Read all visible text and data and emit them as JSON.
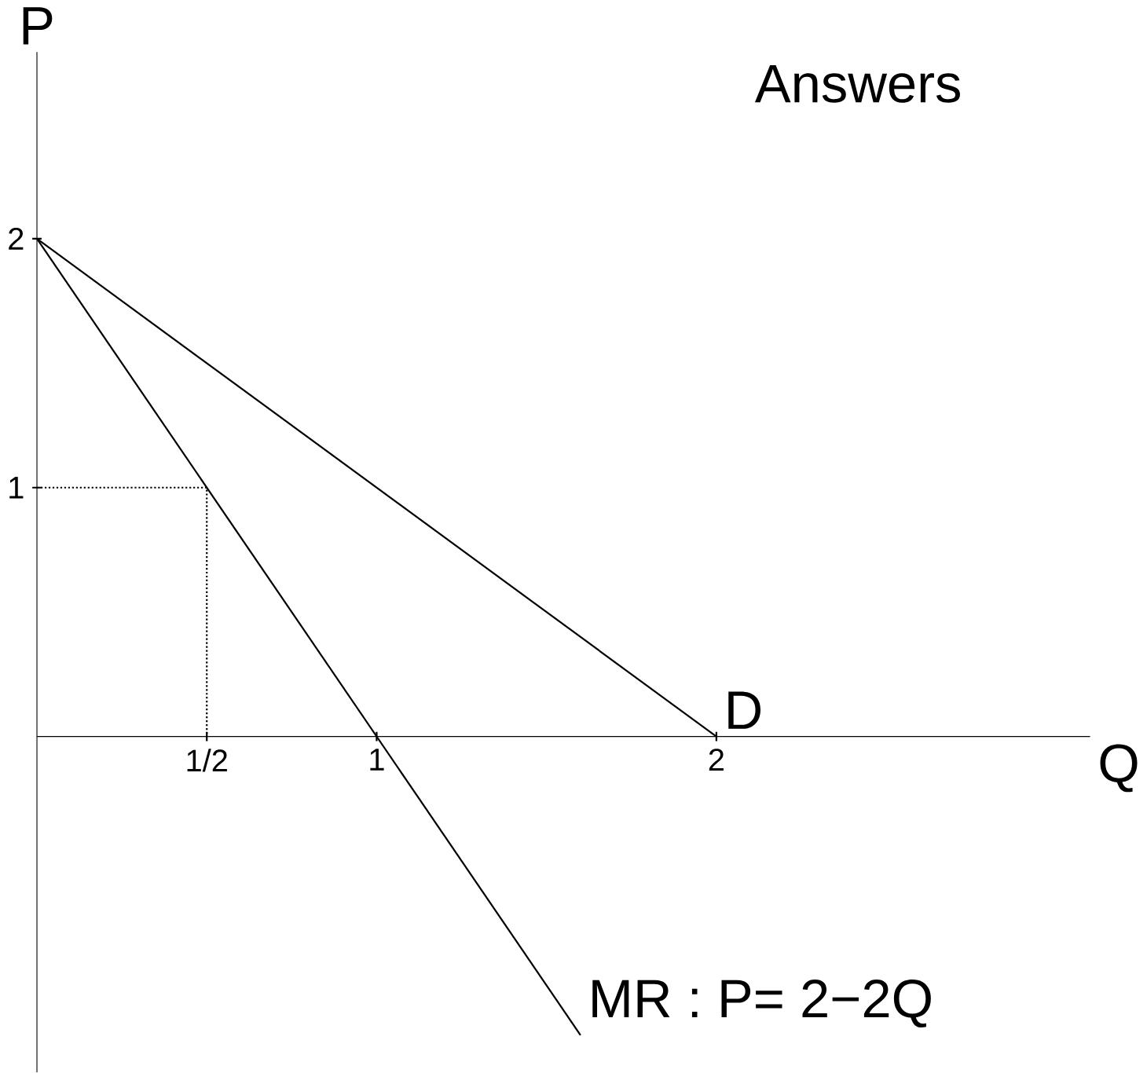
{
  "chart_data": {
    "type": "line",
    "title": "Answers",
    "xlabel": "Q",
    "ylabel": "P",
    "xlim": [
      0,
      3.1
    ],
    "ylim": [
      -1.35,
      2.75
    ],
    "xticks": [
      {
        "value": 0.5,
        "label": "1/2"
      },
      1,
      2
    ],
    "yticks": [
      1,
      2
    ],
    "series": [
      {
        "name": "D",
        "color": "#000000",
        "x": [
          0,
          2
        ],
        "values": [
          2,
          0
        ],
        "line_style": "solid"
      },
      {
        "name": "MR : P= 2−2Q",
        "color": "#000000",
        "x": [
          0,
          1.6
        ],
        "values": [
          2,
          -1.2
        ],
        "line_style": "solid"
      },
      {
        "color": "#000000",
        "x": [
          0,
          0.5,
          0.5
        ],
        "values": [
          1,
          1,
          0
        ],
        "line_style": "dotted"
      }
    ]
  }
}
